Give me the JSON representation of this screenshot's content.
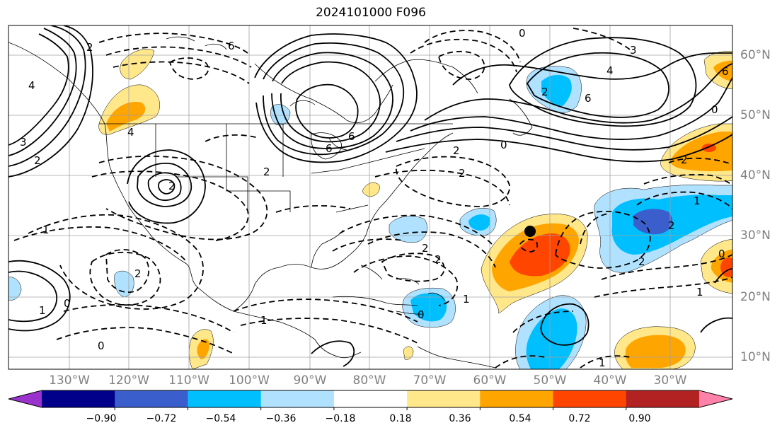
{
  "title": "2024101000 F096",
  "lon_labels": [
    "130°W",
    "120°W",
    "110°W",
    "100°W",
    "90°W",
    "80°W",
    "70°W",
    "60°W",
    "50°W",
    "40°W",
    "30°W"
  ],
  "lat_labels": [
    "60°N",
    "50°N",
    "40°N",
    "30°N",
    "20°N",
    "10°N"
  ],
  "colorbar": {
    "colors": [
      "#9a32cd",
      "#00008b",
      "#3a5fcd",
      "#00bfff",
      "#b0e2ff",
      "#ffffff",
      "#ffe78a",
      "#ffa500",
      "#ff4500",
      "#b22222",
      "#ff82ab"
    ],
    "under_color": "#9a32cd",
    "over_color": "#ff82ab",
    "tick_labels": [
      "−0.90",
      "−0.72",
      "−0.54",
      "−0.36",
      "−0.18",
      "0.18",
      "0.36",
      "0.54",
      "0.72",
      "0.90"
    ]
  },
  "contour_labels": [
    "2",
    "4",
    "3",
    "2",
    "6",
    "4",
    "6",
    "2",
    "2",
    "0",
    "6",
    "3",
    "4",
    "6",
    "2",
    "0",
    "2",
    "2",
    "1",
    "0",
    "1",
    "2",
    "2",
    "2",
    "1",
    "0",
    "2",
    "1",
    "0",
    "1",
    "1",
    "0",
    "0",
    "2",
    "6",
    "1",
    "2"
  ],
  "marker": {
    "name": "storm-center-dot",
    "color": "#000000"
  }
}
